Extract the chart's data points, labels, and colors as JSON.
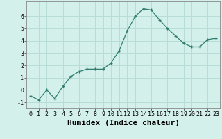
{
  "x": [
    0,
    1,
    2,
    3,
    4,
    5,
    6,
    7,
    8,
    9,
    10,
    11,
    12,
    13,
    14,
    15,
    16,
    17,
    18,
    19,
    20,
    21,
    22,
    23
  ],
  "y": [
    -0.5,
    -0.8,
    0.0,
    -0.7,
    0.3,
    1.1,
    1.5,
    1.7,
    1.7,
    1.7,
    2.2,
    3.2,
    4.8,
    6.0,
    6.6,
    6.5,
    5.7,
    5.0,
    4.4,
    3.8,
    3.5,
    3.5,
    4.1,
    4.2
  ],
  "xlabel": "Humidex (Indice chaleur)",
  "xlim": [
    -0.5,
    23.5
  ],
  "ylim": [
    -1.5,
    7.2
  ],
  "yticks": [
    -1,
    0,
    1,
    2,
    3,
    4,
    5,
    6
  ],
  "xticks": [
    0,
    1,
    2,
    3,
    4,
    5,
    6,
    7,
    8,
    9,
    10,
    11,
    12,
    13,
    14,
    15,
    16,
    17,
    18,
    19,
    20,
    21,
    22,
    23
  ],
  "line_color": "#2e7d6e",
  "marker": "+",
  "marker_color": "#2e7d6e",
  "bg_color": "#d4f0eb",
  "grid_color": "#b8ddd6",
  "tick_fontsize": 6.0,
  "xlabel_fontsize": 8.0
}
